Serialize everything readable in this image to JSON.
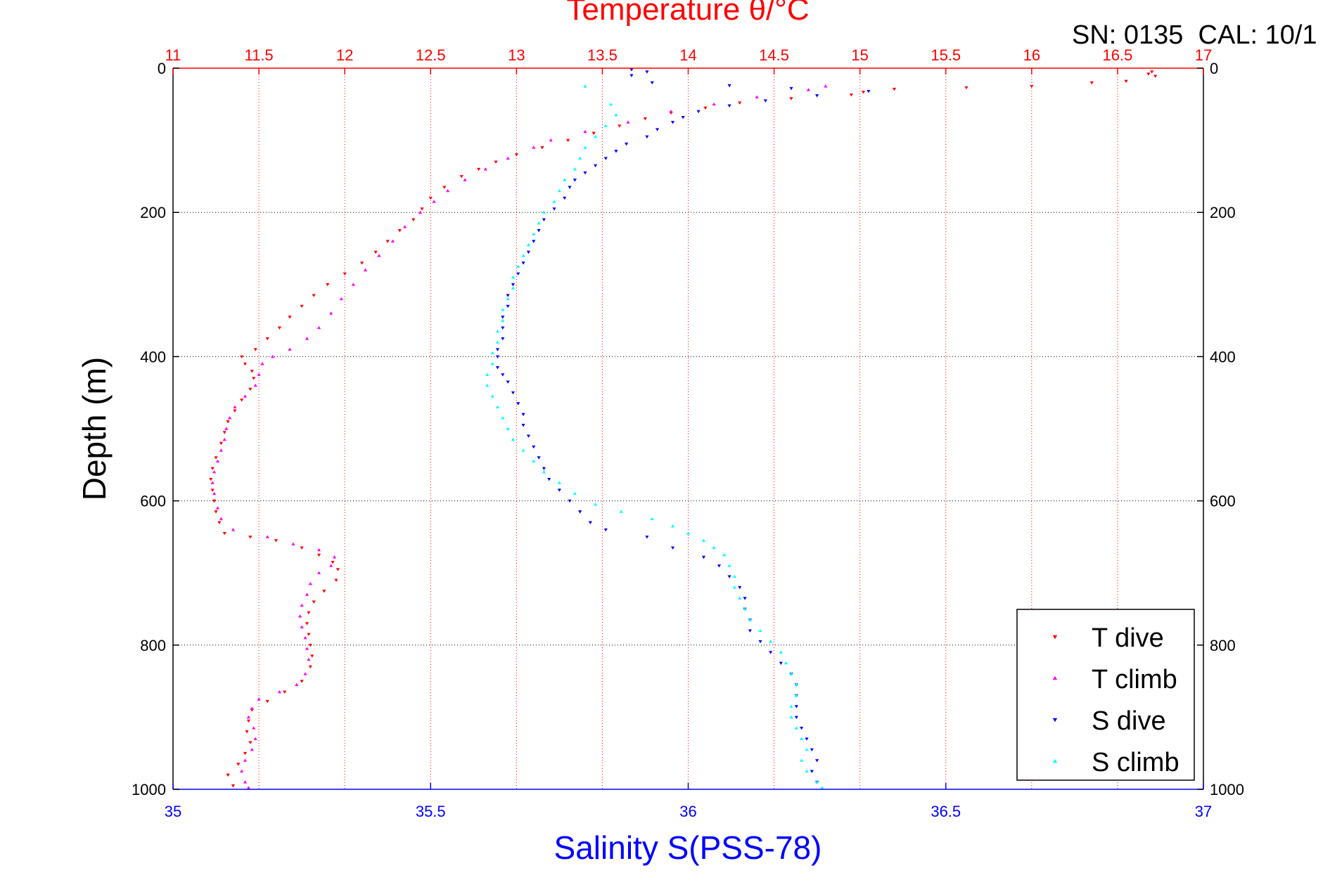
{
  "chart_data": {
    "type": "scatter",
    "title": "Temperature θ/°C",
    "corner_text": "SN: 0135  CAL: 10/1",
    "xlabel_top": "Temperature θ/°C",
    "xlabel_bottom": "Salinity S(PSS-78)",
    "ylabel": "Depth (m)",
    "ylim": [
      0,
      1000
    ],
    "y_inverted": true,
    "grid": true,
    "legend_position": "bottom-right",
    "temperature_axis": {
      "range": [
        11,
        17
      ],
      "ticks": [
        "11",
        "11.5",
        "12",
        "12.5",
        "13",
        "13.5",
        "14",
        "14.5",
        "15",
        "15.5",
        "16",
        "16.5",
        "17"
      ],
      "color": "#ff0000"
    },
    "salinity_axis": {
      "range": [
        35,
        37
      ],
      "ticks": [
        "35",
        "35.5",
        "36",
        "36.5",
        "37"
      ],
      "color": "#0000ff"
    },
    "depth_ticks": [
      "0",
      "200",
      "400",
      "600",
      "800",
      "1000"
    ],
    "series": [
      {
        "name": "T dive",
        "axis": "temperature",
        "marker": "triangle-down",
        "color": "#ff0000",
        "points": [
          [
            16.7,
            5
          ],
          [
            16.68,
            8
          ],
          [
            16.72,
            11
          ],
          [
            16.55,
            18
          ],
          [
            16.35,
            20
          ],
          [
            16.0,
            25
          ],
          [
            15.62,
            27
          ],
          [
            15.2,
            29
          ],
          [
            15.02,
            33
          ],
          [
            14.95,
            37
          ],
          [
            14.6,
            42
          ],
          [
            14.3,
            48
          ],
          [
            14.1,
            55
          ],
          [
            13.9,
            62
          ],
          [
            13.75,
            70
          ],
          [
            13.6,
            80
          ],
          [
            13.45,
            90
          ],
          [
            13.3,
            100
          ],
          [
            13.15,
            110
          ],
          [
            13.0,
            120
          ],
          [
            12.88,
            130
          ],
          [
            12.78,
            140
          ],
          [
            12.68,
            150
          ],
          [
            12.58,
            165
          ],
          [
            12.5,
            180
          ],
          [
            12.45,
            195
          ],
          [
            12.4,
            210
          ],
          [
            12.32,
            225
          ],
          [
            12.25,
            240
          ],
          [
            12.18,
            255
          ],
          [
            12.1,
            270
          ],
          [
            12.0,
            285
          ],
          [
            11.9,
            300
          ],
          [
            11.82,
            315
          ],
          [
            11.75,
            330
          ],
          [
            11.68,
            345
          ],
          [
            11.62,
            360
          ],
          [
            11.55,
            375
          ],
          [
            11.48,
            390
          ],
          [
            11.4,
            400
          ],
          [
            11.42,
            410
          ],
          [
            11.46,
            420
          ],
          [
            11.47,
            430
          ],
          [
            11.45,
            445
          ],
          [
            11.4,
            460
          ],
          [
            11.36,
            475
          ],
          [
            11.32,
            490
          ],
          [
            11.3,
            505
          ],
          [
            11.28,
            520
          ],
          [
            11.25,
            540
          ],
          [
            11.23,
            555
          ],
          [
            11.22,
            570
          ],
          [
            11.23,
            585
          ],
          [
            11.24,
            600
          ],
          [
            11.25,
            615
          ],
          [
            11.27,
            630
          ],
          [
            11.3,
            645
          ],
          [
            11.45,
            650
          ],
          [
            11.6,
            655
          ],
          [
            11.75,
            665
          ],
          [
            11.85,
            675
          ],
          [
            11.93,
            685
          ],
          [
            11.96,
            695
          ],
          [
            11.95,
            710
          ],
          [
            11.88,
            725
          ],
          [
            11.82,
            740
          ],
          [
            11.79,
            755
          ],
          [
            11.78,
            770
          ],
          [
            11.79,
            785
          ],
          [
            11.8,
            800
          ],
          [
            11.81,
            815
          ],
          [
            11.8,
            830
          ],
          [
            11.75,
            850
          ],
          [
            11.65,
            865
          ],
          [
            11.55,
            878
          ],
          [
            11.46,
            890
          ],
          [
            11.44,
            905
          ],
          [
            11.43,
            920
          ],
          [
            11.45,
            935
          ],
          [
            11.42,
            950
          ],
          [
            11.38,
            965
          ],
          [
            11.32,
            980
          ],
          [
            11.35,
            995
          ]
        ]
      },
      {
        "name": "T climb",
        "axis": "temperature",
        "marker": "triangle-up",
        "color": "#ff00ff",
        "points": [
          [
            14.8,
            25
          ],
          [
            14.7,
            30
          ],
          [
            14.4,
            40
          ],
          [
            14.15,
            50
          ],
          [
            13.9,
            60
          ],
          [
            13.65,
            75
          ],
          [
            13.4,
            88
          ],
          [
            13.2,
            100
          ],
          [
            13.1,
            110
          ],
          [
            12.95,
            125
          ],
          [
            12.82,
            140
          ],
          [
            12.7,
            155
          ],
          [
            12.6,
            170
          ],
          [
            12.52,
            185
          ],
          [
            12.44,
            200
          ],
          [
            12.35,
            220
          ],
          [
            12.28,
            240
          ],
          [
            12.2,
            260
          ],
          [
            12.12,
            280
          ],
          [
            12.05,
            300
          ],
          [
            11.98,
            320
          ],
          [
            11.92,
            340
          ],
          [
            11.85,
            360
          ],
          [
            11.78,
            375
          ],
          [
            11.68,
            390
          ],
          [
            11.58,
            400
          ],
          [
            11.52,
            410
          ],
          [
            11.5,
            425
          ],
          [
            11.48,
            440
          ],
          [
            11.42,
            455
          ],
          [
            11.36,
            470
          ],
          [
            11.33,
            485
          ],
          [
            11.31,
            500
          ],
          [
            11.3,
            515
          ],
          [
            11.28,
            530
          ],
          [
            11.26,
            545
          ],
          [
            11.24,
            560
          ],
          [
            11.23,
            575
          ],
          [
            11.24,
            590
          ],
          [
            11.26,
            610
          ],
          [
            11.28,
            625
          ],
          [
            11.35,
            640
          ],
          [
            11.55,
            650
          ],
          [
            11.7,
            660
          ],
          [
            11.85,
            668
          ],
          [
            11.94,
            678
          ],
          [
            11.92,
            690
          ],
          [
            11.85,
            700
          ],
          [
            11.8,
            715
          ],
          [
            11.78,
            730
          ],
          [
            11.75,
            745
          ],
          [
            11.74,
            760
          ],
          [
            11.75,
            775
          ],
          [
            11.77,
            790
          ],
          [
            11.78,
            805
          ],
          [
            11.79,
            820
          ],
          [
            11.77,
            840
          ],
          [
            11.72,
            855
          ],
          [
            11.62,
            865
          ],
          [
            11.5,
            875
          ],
          [
            11.46,
            888
          ],
          [
            11.44,
            900
          ],
          [
            11.47,
            915
          ],
          [
            11.48,
            930
          ],
          [
            11.46,
            945
          ],
          [
            11.42,
            960
          ],
          [
            11.4,
            975
          ],
          [
            11.42,
            990
          ],
          [
            11.44,
            998
          ]
        ]
      },
      {
        "name": "S dive",
        "axis": "salinity",
        "marker": "triangle-down",
        "color": "#0000ff",
        "points": [
          [
            35.89,
            2
          ],
          [
            35.92,
            5
          ],
          [
            35.89,
            10
          ],
          [
            35.93,
            20
          ],
          [
            36.08,
            24
          ],
          [
            36.2,
            28
          ],
          [
            36.35,
            32
          ],
          [
            36.25,
            38
          ],
          [
            36.15,
            45
          ],
          [
            36.08,
            52
          ],
          [
            36.02,
            60
          ],
          [
            35.99,
            68
          ],
          [
            35.97,
            75
          ],
          [
            35.94,
            85
          ],
          [
            35.92,
            95
          ],
          [
            35.88,
            105
          ],
          [
            35.86,
            115
          ],
          [
            35.84,
            125
          ],
          [
            35.82,
            135
          ],
          [
            35.8,
            145
          ],
          [
            35.78,
            155
          ],
          [
            35.77,
            165
          ],
          [
            35.76,
            180
          ],
          [
            35.74,
            195
          ],
          [
            35.72,
            210
          ],
          [
            35.71,
            225
          ],
          [
            35.7,
            240
          ],
          [
            35.69,
            255
          ],
          [
            35.68,
            270
          ],
          [
            35.67,
            285
          ],
          [
            35.66,
            300
          ],
          [
            35.65,
            315
          ],
          [
            35.65,
            330
          ],
          [
            35.64,
            345
          ],
          [
            35.64,
            360
          ],
          [
            35.64,
            375
          ],
          [
            35.63,
            390
          ],
          [
            35.63,
            400
          ],
          [
            35.63,
            415
          ],
          [
            35.64,
            425
          ],
          [
            35.65,
            435
          ],
          [
            35.66,
            450
          ],
          [
            35.67,
            465
          ],
          [
            35.68,
            480
          ],
          [
            35.68,
            495
          ],
          [
            35.69,
            510
          ],
          [
            35.7,
            525
          ],
          [
            35.71,
            540
          ],
          [
            35.72,
            555
          ],
          [
            35.73,
            570
          ],
          [
            35.75,
            585
          ],
          [
            35.77,
            600
          ],
          [
            35.79,
            615
          ],
          [
            35.81,
            630
          ],
          [
            35.84,
            640
          ],
          [
            35.92,
            650
          ],
          [
            35.97,
            665
          ],
          [
            36.03,
            678
          ],
          [
            36.06,
            690
          ],
          [
            36.08,
            705
          ],
          [
            36.1,
            720
          ],
          [
            36.11,
            735
          ],
          [
            36.11,
            750
          ],
          [
            36.12,
            765
          ],
          [
            36.12,
            780
          ],
          [
            36.14,
            795
          ],
          [
            36.16,
            810
          ],
          [
            36.18,
            825
          ],
          [
            36.2,
            840
          ],
          [
            36.21,
            855
          ],
          [
            36.21,
            870
          ],
          [
            36.21,
            885
          ],
          [
            36.21,
            900
          ],
          [
            36.22,
            915
          ],
          [
            36.23,
            930
          ],
          [
            36.24,
            945
          ],
          [
            36.25,
            960
          ],
          [
            36.24,
            975
          ],
          [
            36.25,
            990
          ]
        ]
      },
      {
        "name": "S climb",
        "axis": "salinity",
        "marker": "triangle-up",
        "color": "#00ffff",
        "points": [
          [
            35.8,
            25
          ],
          [
            35.85,
            50
          ],
          [
            35.86,
            65
          ],
          [
            35.84,
            80
          ],
          [
            35.82,
            95
          ],
          [
            35.8,
            110
          ],
          [
            35.79,
            125
          ],
          [
            35.78,
            140
          ],
          [
            35.76,
            155
          ],
          [
            35.75,
            170
          ],
          [
            35.74,
            185
          ],
          [
            35.72,
            200
          ],
          [
            35.71,
            215
          ],
          [
            35.7,
            230
          ],
          [
            35.69,
            245
          ],
          [
            35.68,
            260
          ],
          [
            35.67,
            275
          ],
          [
            35.66,
            290
          ],
          [
            35.66,
            305
          ],
          [
            35.65,
            320
          ],
          [
            35.64,
            335
          ],
          [
            35.64,
            350
          ],
          [
            35.63,
            365
          ],
          [
            35.63,
            380
          ],
          [
            35.62,
            395
          ],
          [
            35.62,
            410
          ],
          [
            35.61,
            425
          ],
          [
            35.61,
            440
          ],
          [
            35.62,
            455
          ],
          [
            35.63,
            470
          ],
          [
            35.64,
            485
          ],
          [
            35.65,
            500
          ],
          [
            35.66,
            515
          ],
          [
            35.68,
            530
          ],
          [
            35.7,
            545
          ],
          [
            35.72,
            560
          ],
          [
            35.75,
            575
          ],
          [
            35.78,
            590
          ],
          [
            35.82,
            605
          ],
          [
            35.87,
            615
          ],
          [
            35.93,
            625
          ],
          [
            35.97,
            635
          ],
          [
            36.0,
            645
          ],
          [
            36.03,
            655
          ],
          [
            36.05,
            665
          ],
          [
            36.07,
            675
          ],
          [
            36.08,
            690
          ],
          [
            36.09,
            705
          ],
          [
            36.09,
            720
          ],
          [
            36.1,
            735
          ],
          [
            36.11,
            750
          ],
          [
            36.12,
            765
          ],
          [
            36.14,
            780
          ],
          [
            36.16,
            795
          ],
          [
            36.18,
            810
          ],
          [
            36.19,
            825
          ],
          [
            36.2,
            840
          ],
          [
            36.21,
            855
          ],
          [
            36.21,
            870
          ],
          [
            36.2,
            885
          ],
          [
            36.2,
            900
          ],
          [
            36.21,
            915
          ],
          [
            36.22,
            930
          ],
          [
            36.23,
            945
          ],
          [
            36.22,
            960
          ],
          [
            36.23,
            975
          ],
          [
            36.25,
            990
          ],
          [
            36.26,
            998
          ]
        ]
      }
    ]
  }
}
